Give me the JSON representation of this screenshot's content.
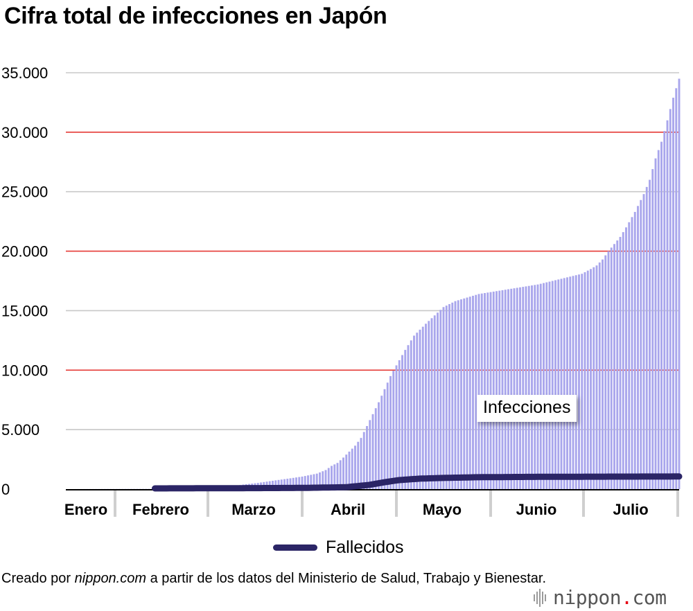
{
  "title": "Cifra total de infecciones en Japón",
  "chart_data": {
    "type": "bar",
    "title": "Cifra total de infecciones en Japón",
    "ylim": [
      0,
      35000
    ],
    "y_ticks": [
      "0",
      "5.000",
      "10.000",
      "15.000",
      "20.000",
      "25.000",
      "30.000",
      "35.000"
    ],
    "months": [
      "Enero",
      "Febrero",
      "Marzo",
      "Abril",
      "Mayo",
      "Junio",
      "Julio"
    ],
    "x_range_days": [
      0,
      208
    ],
    "grid": true,
    "series": [
      {
        "name": "Infecciones",
        "style": "bars",
        "color": "#a9a6ec",
        "points": [
          [
            0,
            0
          ],
          [
            37,
            20
          ],
          [
            45,
            60
          ],
          [
            50,
            120
          ],
          [
            57,
            250
          ],
          [
            60,
            380
          ],
          [
            65,
            520
          ],
          [
            70,
            700
          ],
          [
            75,
            870
          ],
          [
            80,
            1050
          ],
          [
            85,
            1300
          ],
          [
            88,
            1600
          ],
          [
            90,
            1950
          ],
          [
            92,
            2200
          ],
          [
            94,
            2650
          ],
          [
            96,
            3150
          ],
          [
            98,
            3650
          ],
          [
            100,
            4300
          ],
          [
            102,
            5300
          ],
          [
            104,
            6300
          ],
          [
            106,
            7300
          ],
          [
            108,
            8400
          ],
          [
            110,
            9500
          ],
          [
            112,
            10400
          ],
          [
            115,
            11700
          ],
          [
            118,
            12900
          ],
          [
            120,
            13400
          ],
          [
            122,
            13900
          ],
          [
            125,
            14600
          ],
          [
            128,
            15300
          ],
          [
            132,
            15800
          ],
          [
            136,
            16100
          ],
          [
            140,
            16400
          ],
          [
            145,
            16600
          ],
          [
            150,
            16800
          ],
          [
            155,
            17000
          ],
          [
            160,
            17200
          ],
          [
            165,
            17500
          ],
          [
            170,
            17800
          ],
          [
            175,
            18100
          ],
          [
            178,
            18500
          ],
          [
            180,
            18800
          ],
          [
            182,
            19300
          ],
          [
            184,
            20000
          ],
          [
            186,
            20600
          ],
          [
            188,
            21200
          ],
          [
            190,
            22000
          ],
          [
            193,
            23300
          ],
          [
            196,
            24800
          ],
          [
            198,
            26000
          ],
          [
            200,
            27800
          ],
          [
            202,
            29200
          ],
          [
            204,
            31000
          ],
          [
            206,
            32900
          ],
          [
            208,
            34500
          ]
        ]
      },
      {
        "name": "Fallecidos",
        "style": "line",
        "color": "#2b2566",
        "points": [
          [
            30,
            0
          ],
          [
            60,
            20
          ],
          [
            80,
            40
          ],
          [
            95,
            100
          ],
          [
            103,
            300
          ],
          [
            108,
            520
          ],
          [
            113,
            700
          ],
          [
            120,
            820
          ],
          [
            128,
            880
          ],
          [
            140,
            940
          ],
          [
            160,
            970
          ],
          [
            180,
            985
          ],
          [
            208,
            1000
          ]
        ]
      }
    ],
    "annotations": [
      "Infecciones"
    ],
    "legend": [
      {
        "label": "Fallecidos",
        "color": "#2b2566"
      }
    ],
    "gridline_colors": {
      "normal": "#c8c8c8",
      "highlight": "#e53935"
    },
    "bar_color": "#a9a6ec",
    "axis_color": "#000000"
  },
  "credit": {
    "prefix": "Creado por ",
    "source": "nippon.com",
    "suffix": " a partir de los datos del Ministerio de Salud, Trabajo y Bienestar."
  },
  "logo": {
    "name": "nippon",
    "dot": ".",
    "tld": "com"
  }
}
